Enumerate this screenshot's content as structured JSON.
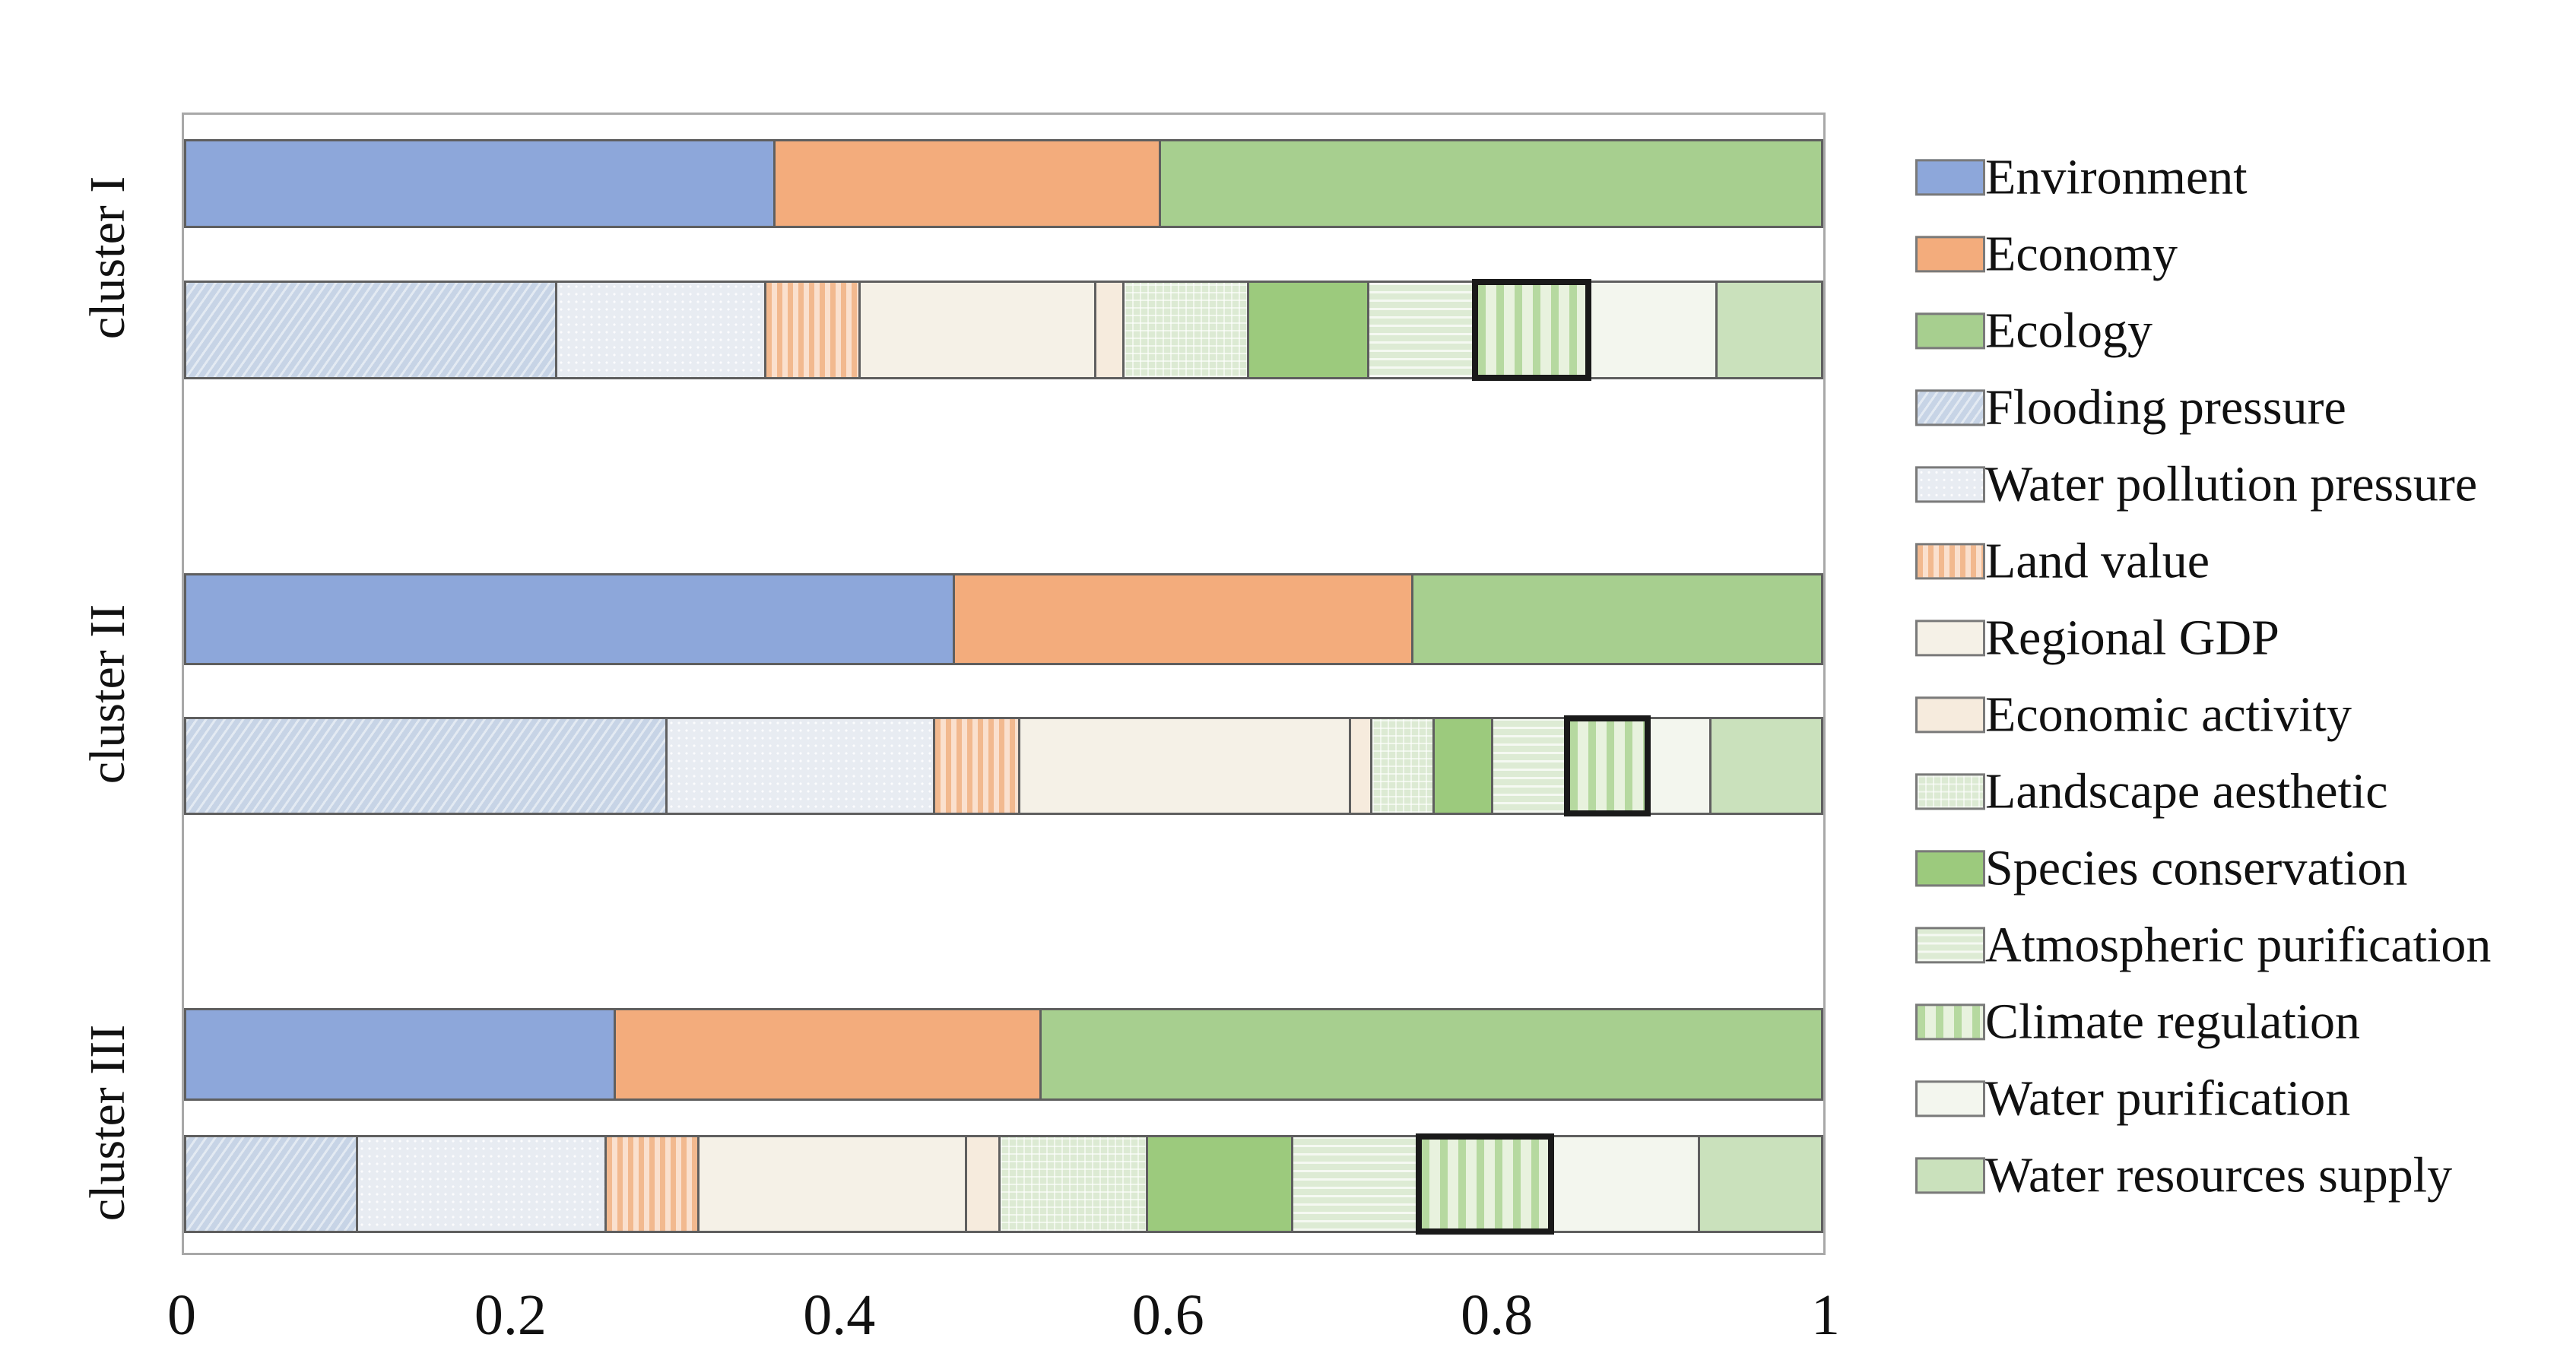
{
  "chart_data": {
    "type": "bar",
    "subtype": "horizontal-stacked",
    "title": "",
    "xlabel": "",
    "ylabel": "",
    "xlim": [
      0,
      1
    ],
    "x_ticks": [
      {
        "value": 0,
        "label": "0"
      },
      {
        "value": 0.2,
        "label": "0.2"
      },
      {
        "value": 0.4,
        "label": "0.4"
      },
      {
        "value": 0.6,
        "label": "0.6"
      },
      {
        "value": 0.8,
        "label": "0.8"
      },
      {
        "value": 1,
        "label": "1"
      }
    ],
    "grid": false,
    "legend_position": "right",
    "frame_color": "#a8a8a8",
    "segment_border_color": "#5f5f5f",
    "highlight_outline_color": "#1a1a1a",
    "dimension_series": [
      "Environment",
      "Economy",
      "Ecology"
    ],
    "indicator_series": [
      "Flooding pressure",
      "Water pollution pressure",
      "Land value",
      "Regional GDP",
      "Economic activity",
      "Landscape aesthetic",
      "Species conservation",
      "Atmospheric purification",
      "Climate regulation",
      "Water purification",
      "Water resources supply"
    ],
    "styles": {
      "Environment": {
        "pattern": "solid",
        "color": "#8DA7DA"
      },
      "Economy": {
        "pattern": "solid",
        "color": "#F3AC7C"
      },
      "Ecology": {
        "pattern": "solid",
        "color": "#A7CF8F"
      },
      "Flooding pressure": {
        "pattern": "diagonal",
        "color": "#C7D4E6"
      },
      "Water pollution pressure": {
        "pattern": "dots",
        "color": "#E8ECF2"
      },
      "Land value": {
        "pattern": "vstripes",
        "color": "#FAE0CE",
        "stripe": "#F2B98F",
        "stripe_width": 7,
        "stripe_period": 14
      },
      "Regional GDP": {
        "pattern": "plain",
        "color": "#F5F1E7"
      },
      "Economic activity": {
        "pattern": "plain",
        "color": "#F6EBDD"
      },
      "Landscape aesthetic": {
        "pattern": "grid",
        "color": "#DCEAD3"
      },
      "Species conservation": {
        "pattern": "solid",
        "color": "#9CCA7D"
      },
      "Atmospheric purification": {
        "pattern": "hlines",
        "color": "#DDEBD4"
      },
      "Climate regulation": {
        "pattern": "vstripes",
        "color": "#E8F2DE",
        "stripe": "#B6D9A0",
        "stripe_width": 10,
        "stripe_period": 24
      },
      "Water purification": {
        "pattern": "plain",
        "color": "#F3F6EE"
      },
      "Water resources supply": {
        "pattern": "plain",
        "color": "#CAE1BC"
      }
    },
    "clusters": [
      {
        "label": "cluster I",
        "dimensions": {
          "values": [
            0.36,
            0.235,
            0.405
          ]
        },
        "indicators": {
          "values": [
            0.229,
            0.128,
            0.057,
            0.145,
            0.016,
            0.076,
            0.073,
            0.066,
            0.068,
            0.078,
            0.064
          ],
          "highlighted": "Climate regulation"
        }
      },
      {
        "label": "cluster II",
        "dimensions": {
          "values": [
            0.47,
            0.28,
            0.25
          ]
        },
        "indicators": {
          "values": [
            0.297,
            0.165,
            0.051,
            0.204,
            0.012,
            0.037,
            0.035,
            0.046,
            0.048,
            0.037,
            0.068
          ],
          "highlighted": "Climate regulation"
        }
      },
      {
        "label": "cluster III",
        "dimensions": {
          "values": [
            0.262,
            0.26,
            0.478
          ]
        },
        "indicators": {
          "values": [
            0.105,
            0.153,
            0.056,
            0.165,
            0.019,
            0.09,
            0.089,
            0.078,
            0.08,
            0.09,
            0.075
          ],
          "highlighted": "Climate regulation"
        }
      }
    ],
    "legend_entries": [
      "Environment",
      "Economy",
      "Ecology",
      "Flooding pressure",
      "Water pollution pressure",
      "Land value",
      "Regional GDP",
      "Economic activity",
      "Landscape aesthetic",
      "Species conservation",
      "Atmospheric purification",
      "Climate regulation",
      "Water purification",
      "Water resources supply"
    ]
  }
}
